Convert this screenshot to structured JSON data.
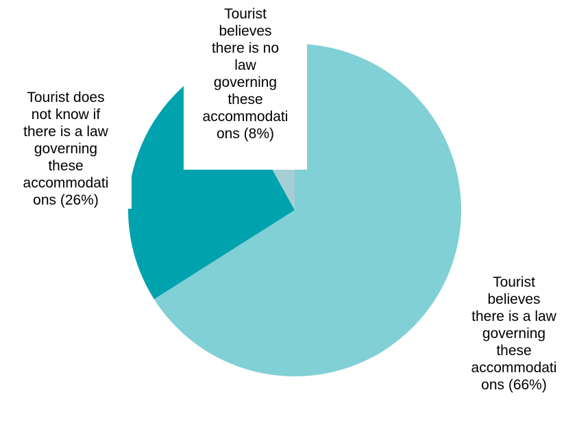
{
  "chart_data": {
    "type": "pie",
    "start_angle_deg": 0,
    "direction": "clockwise",
    "slices": [
      {
        "label": "Tourist\nbelieves\nthere is a law\ngoverning\nthese\naccommodati\nons (66%)",
        "value": 66,
        "color": "#80D0D5"
      },
      {
        "label": "Tourist does\nnot know if\nthere is a law\ngoverning\nthese\naccommodati\nons (26%)",
        "value": 26,
        "color": "#00A3AD"
      },
      {
        "label": "Tourist\nbelieves\nthere is no\nlaw\ngoverning\nthese\naccommodati\nons (8%)",
        "value": 8,
        "color": "#A6CED5"
      }
    ]
  }
}
